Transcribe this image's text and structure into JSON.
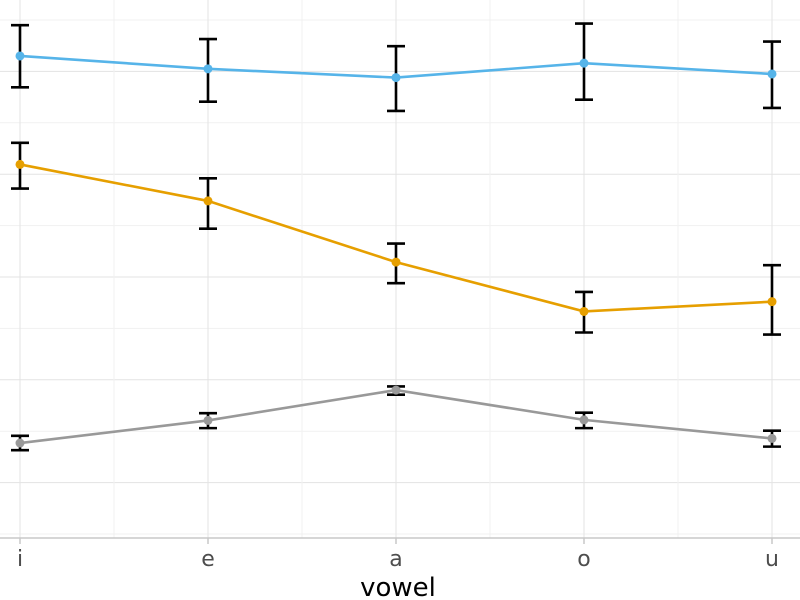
{
  "chart_data": {
    "type": "line",
    "title": "",
    "xlabel": "vowel",
    "ylabel": "",
    "categories": [
      "i",
      "e",
      "a",
      "o",
      "u"
    ],
    "ylim": [
      0,
      100
    ],
    "grid": true,
    "legend": "none",
    "series": [
      {
        "color": "#56B4E9",
        "values": [
          93.0,
          90.5,
          88.8,
          91.6,
          89.5
        ],
        "err_low": [
          86.9,
          84.1,
          82.3,
          84.5,
          82.9
        ],
        "err_high": [
          99.0,
          96.3,
          94.9,
          99.3,
          95.8
        ]
      },
      {
        "color": "#E69F00",
        "values": [
          71.9,
          64.8,
          52.9,
          43.3,
          45.2
        ],
        "err_low": [
          67.2,
          59.4,
          48.8,
          39.2,
          38.8
        ],
        "err_high": [
          76.1,
          69.2,
          56.5,
          47.1,
          52.3
        ]
      },
      {
        "color": "#999999",
        "values": [
          17.7,
          22.1,
          28.0,
          22.2,
          18.6
        ],
        "err_low": [
          16.3,
          20.6,
          27.1,
          20.6,
          17.0
        ],
        "err_high": [
          19.1,
          23.5,
          28.7,
          23.6,
          20.1
        ]
      }
    ]
  }
}
